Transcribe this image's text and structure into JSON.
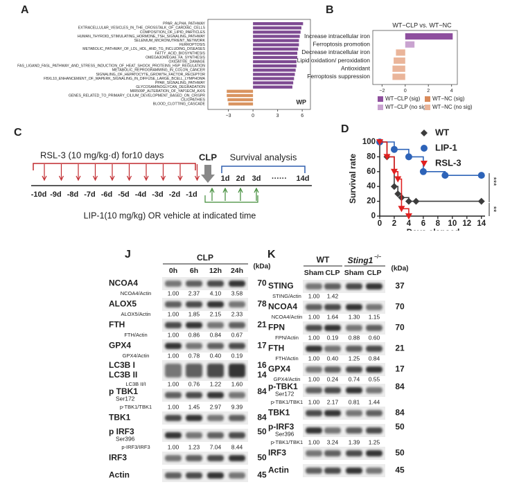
{
  "panel_labels": [
    "A",
    "B",
    "C",
    "D",
    "J",
    "K"
  ],
  "chart_data": [
    {
      "type": "bar",
      "orientation": "horizontal",
      "categories": [
        "PPAR_ALPHA_PATHWAY",
        "EXTRACELLULAR_VESICLES_IN_THE_CROSSTALK_OF_CARDIAC_CELLS",
        "COMPOSITION_OF_LIPID_PARTICLES",
        "HUMAN_THYROID_STIMULATING_HORMONE_TSH_SIGNALING_PATHWAY",
        "SELENIUM_MICRONUTRIENT_NETWORK",
        "FERROPTOSIS",
        "METABOLIC_PATHWAY_OF_LDL_HDL_AND_TG_INCLUDING_DISEASES",
        "FATTY_ACID_BIOSYNTHESIS",
        "OMEGA3OMEGA6_FA_SYNTHESIS",
        "OXIDATIVE_DAMAGE",
        "FAS_LIGAND_FASL_PATHWAY_AND_STRESS_INDUCTION_OF_HEAT_SHOCK_PROTEINS_HSP_REGULATION",
        "METABOLIC_REPROGRAMMING_IN_COLON_CANCER",
        "SIGNALING_OF_HEPATOCYTE_GROWTH_FACTOR_RECEPTOR",
        "FBXL10_ENHANCEMENT_OF_MAPERK_SIGNALING_IN_DIFFUSE_LARGE_BCELL_LYMPHOMA",
        "PPAR_SIGNALING_PATHWAY",
        "GLYCOSAMINOGLYCAN_DEGRADATION",
        "MIR509P_ALTERATION_OF_YAP1ECM_AXIS",
        "GENES_RELATED_TO_PRIMARY_CILIUM_DEVELOPMENT_BASED_ON_CRISPR",
        "CILIOPATHIES",
        "BLOOD_CLOTTING_CASCADE"
      ],
      "values": [
        6.1,
        5.9,
        5.8,
        5.7,
        5.6,
        5.6,
        5.5,
        5.4,
        5.4,
        5.3,
        5.3,
        5.2,
        5.1,
        5.0,
        4.9,
        4.8,
        -3.2,
        -3.2,
        -3.1,
        -3.0
      ],
      "colors": [
        "#7e4a92",
        "#7e4a92",
        "#7e4a92",
        "#7e4a92",
        "#7e4a92",
        "#7e4a92",
        "#7e4a92",
        "#7e4a92",
        "#7e4a92",
        "#7e4a92",
        "#7e4a92",
        "#7e4a92",
        "#7e4a92",
        "#7e4a92",
        "#7e4a92",
        "#7e4a92",
        "#d99460",
        "#d99460",
        "#d99460",
        "#d99460"
      ],
      "label_colors": [
        "#444",
        "#444",
        "#444",
        "#444",
        "#444",
        "#e5533d",
        "#444",
        "#444",
        "#444",
        "#444",
        "#444",
        "#444",
        "#444",
        "#444",
        "#444",
        "#444",
        "#444",
        "#444",
        "#444",
        "#444"
      ],
      "xlim": [
        -5.5,
        7
      ],
      "xticks": [
        {
          "value": -3,
          "label": "−3"
        },
        0,
        3,
        6
      ],
      "annotation": "WP"
    },
    {
      "type": "bar",
      "orientation": "horizontal",
      "title": "WT−CLP vs. WT−NC",
      "categories": [
        "Increase intracellular iron",
        "Ferroptosis promotion",
        "Decrease intracellular iron",
        "Lipid oxidation/ peroxidation",
        "Antioxidant",
        "Ferroptosis suppression"
      ],
      "values": [
        4.1,
        0.8,
        -0.8,
        -1.0,
        -1.1,
        -1.1
      ],
      "colors": [
        "#8e4f9e",
        "#c9a3d0",
        "#eab59a",
        "#eab59a",
        "#eab59a",
        "#eab59a"
      ],
      "xlim": [
        -2.8,
        4.5
      ],
      "xticks": [
        {
          "value": -2,
          "label": "−2"
        },
        0,
        2,
        4
      ],
      "legend": [
        {
          "name": "WT−CLP (sig)",
          "color": "#8e4f9e"
        },
        {
          "name": "WT−NC (sig)",
          "color": "#d98a5a"
        },
        {
          "name": "WT−CLP (no sig)",
          "color": "#c9a3d0"
        },
        {
          "name": "WT−NC (no sig)",
          "color": "#eab59a"
        }
      ]
    },
    {
      "type": "line",
      "step": true,
      "xlabel": "Days elapsed",
      "ylabel": "Survival rate",
      "series": [
        {
          "name": "WT",
          "color": "#3c3c3c",
          "marker": "diamond",
          "x": [
            0,
            1,
            2,
            2.5,
            3,
            4,
            5,
            14
          ],
          "values": [
            100,
            80,
            40,
            30,
            25,
            20,
            20,
            20
          ]
        },
        {
          "name": "LIP-1",
          "color": "#2d63b8",
          "marker": "circle",
          "x": [
            0,
            2,
            4,
            6,
            9,
            14
          ],
          "values": [
            100,
            90,
            80,
            60,
            55,
            55
          ]
        },
        {
          "name": "RSL-3",
          "color": "#e02020",
          "marker": "triangle-down",
          "x": [
            0,
            1,
            2,
            2.5,
            3,
            4
          ],
          "values": [
            100,
            80,
            60,
            50,
            10,
            0
          ]
        }
      ],
      "xlim": [
        0,
        14.5
      ],
      "ylim": [
        0,
        100
      ],
      "xticks": [
        0,
        2,
        4,
        6,
        8,
        10,
        12,
        14
      ],
      "yticks": [
        0,
        20,
        40,
        60,
        80,
        100
      ],
      "annotations": [
        "***",
        "**"
      ]
    }
  ],
  "schematic": {
    "rsl3": "RSL-3 (10 mg/kg·d) for10 days",
    "clp": "CLP",
    "survival": "Survival analysis",
    "pre_days": [
      "-10d",
      "-9d",
      "-8d",
      "-7d",
      "-6d",
      "-5d",
      "-4d",
      "-3d",
      "-2d",
      "-1d"
    ],
    "post_days": [
      "1d",
      "2d",
      "3d",
      "······",
      "14d"
    ],
    "lip1": "LIP-1(10 mg/kg) OR vehicle at indicated time"
  },
  "blots": [
    {
      "group": "CLP",
      "lanes": [
        "0h",
        "6h",
        "12h",
        "24h"
      ],
      "unit": "(kDa)",
      "rows": [
        {
          "names": [
            "NCOA4"
          ],
          "kda": [
            "70"
          ],
          "ratio_label": "NCOA4/Actin",
          "ratios": [
            "1.00",
            "2.37",
            "4.10",
            "3.58"
          ]
        },
        {
          "names": [
            "ALOX5"
          ],
          "kda": [
            "78"
          ],
          "ratio_label": "ALOX5/Actin",
          "ratios": [
            "1.00",
            "1.85",
            "2.15",
            "2.33"
          ]
        },
        {
          "names": [
            "FTH"
          ],
          "kda": [
            "21"
          ],
          "ratio_label": "FTH/Actin",
          "ratios": [
            "1.00",
            "0.86",
            "0.84",
            "0.67"
          ]
        },
        {
          "names": [
            "GPX4"
          ],
          "kda": [
            "17"
          ],
          "ratio_label": "GPX4/Actin",
          "ratios": [
            "1.00",
            "0.78",
            "0.40",
            "0.19"
          ]
        },
        {
          "names": [
            "LC3B I",
            "LC3B II"
          ],
          "kda": [
            "16",
            "14"
          ],
          "ratio_label": "LC3B II/I",
          "ratios": [
            "1.00",
            "0.76",
            "1.22",
            "1.60"
          ]
        },
        {
          "names": [
            "p TBK1"
          ],
          "site": "Ser172",
          "kda": [
            "84"
          ],
          "ratio_label": "p-TBK1/TBK1",
          "ratios": [
            "1.00",
            "1.45",
            "2.97",
            "9.39"
          ]
        },
        {
          "names": [
            "TBK1"
          ],
          "kda": [
            "84"
          ]
        },
        {
          "names": [
            "p IRF3"
          ],
          "site": "Ser396",
          "kda": [
            "50"
          ],
          "ratio_label": "p-IRF3/IRF3",
          "ratios": [
            "1.00",
            "1.23",
            "7.04",
            "8.44"
          ]
        },
        {
          "names": [
            "IRF3"
          ],
          "kda": [
            "50"
          ]
        },
        {
          "names": [
            "Actin"
          ],
          "kda": [
            "45"
          ]
        }
      ]
    },
    {
      "groups": [
        {
          "gene": "WT"
        },
        {
          "gene": "Sting1",
          "sup": "−/−"
        }
      ],
      "lanes": [
        "Sham",
        "CLP",
        "Sham",
        "CLP"
      ],
      "unit": "(kDa)",
      "rows": [
        {
          "names": [
            "STING"
          ],
          "kda": [
            "37"
          ],
          "ratio_label": "STING/Actin",
          "ratios": [
            "1.00",
            "1.42"
          ]
        },
        {
          "names": [
            "NCOA4"
          ],
          "kda": [
            "70"
          ],
          "ratio_label": "NCOA4/Actin",
          "ratios": [
            "1.00",
            "1.64",
            "1.30",
            "1.15"
          ]
        },
        {
          "names": [
            "FPN"
          ],
          "kda": [
            "70"
          ],
          "ratio_label": "FPN/Actin",
          "ratios": [
            "1.00",
            "0.19",
            "0.88",
            "0.60"
          ]
        },
        {
          "names": [
            "FTH"
          ],
          "kda": [
            "21"
          ],
          "ratio_label": "FTH/Actin",
          "ratios": [
            "1.00",
            "0.40",
            "1.25",
            "0.84"
          ]
        },
        {
          "names": [
            "GPX4"
          ],
          "kda": [
            "17"
          ],
          "ratio_label": "GPX4/Actin",
          "ratios": [
            "1.00",
            "0.24",
            "0.74",
            "0.55"
          ]
        },
        {
          "names": [
            "p-TBK1"
          ],
          "site": "Ser172",
          "kda": [
            "84"
          ],
          "ratio_label": "p-TBK1/TBK1",
          "ratios": [
            "1.00",
            "2.17",
            "0.81",
            "1.44"
          ]
        },
        {
          "names": [
            "TBK1"
          ],
          "kda": [
            "84"
          ]
        },
        {
          "names": [
            "p-IRF3"
          ],
          "site": "Ser396",
          "kda": [
            "50"
          ],
          "ratio_label": "p-TBK1/TBK1",
          "ratios": [
            "1.00",
            "3.24",
            "1.39",
            "1.25"
          ]
        },
        {
          "names": [
            "IRF3"
          ],
          "kda": [
            "50"
          ]
        },
        {
          "names": [
            "Actin"
          ],
          "kda": [
            "45"
          ]
        }
      ]
    }
  ]
}
